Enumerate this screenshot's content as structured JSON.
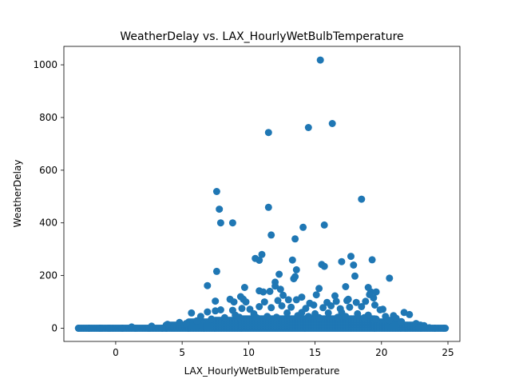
{
  "chart_data": {
    "type": "scatter",
    "title": "WeatherDelay vs. LAX_HourlyWetBulbTemperature",
    "xlabel": "LAX_HourlyWetBulbTemperature",
    "ylabel": "WeatherDelay",
    "xlim": [
      -3.9,
      25.9
    ],
    "ylim": [
      -50,
      1070
    ],
    "xticks": [
      0,
      5,
      10,
      15,
      20,
      25
    ],
    "yticks": [
      0,
      200,
      400,
      600,
      800,
      1000
    ],
    "grid": false,
    "legend": "none",
    "marker_color": "#1f77b4",
    "points": [
      {
        "x": 15.4,
        "y": 1018
      },
      {
        "x": 11.5,
        "y": 743
      },
      {
        "x": 14.5,
        "y": 762
      },
      {
        "x": 16.3,
        "y": 777
      },
      {
        "x": 7.6,
        "y": 519
      },
      {
        "x": 7.8,
        "y": 452
      },
      {
        "x": 11.5,
        "y": 459
      },
      {
        "x": 18.5,
        "y": 490
      },
      {
        "x": 7.9,
        "y": 400
      },
      {
        "x": 8.8,
        "y": 400
      },
      {
        "x": 14.1,
        "y": 383
      },
      {
        "x": 15.7,
        "y": 392
      },
      {
        "x": 11.7,
        "y": 354
      },
      {
        "x": 13.5,
        "y": 339
      },
      {
        "x": 10.5,
        "y": 265
      },
      {
        "x": 10.8,
        "y": 258
      },
      {
        "x": 11.0,
        "y": 280
      },
      {
        "x": 13.3,
        "y": 259
      },
      {
        "x": 15.5,
        "y": 242
      },
      {
        "x": 15.7,
        "y": 235
      },
      {
        "x": 17.0,
        "y": 253
      },
      {
        "x": 17.7,
        "y": 273
      },
      {
        "x": 17.9,
        "y": 240
      },
      {
        "x": 19.3,
        "y": 260
      },
      {
        "x": 7.6,
        "y": 216
      },
      {
        "x": 13.6,
        "y": 222
      },
      {
        "x": 12.3,
        "y": 205
      },
      {
        "x": 12.0,
        "y": 175
      },
      {
        "x": 12.0,
        "y": 160
      },
      {
        "x": 13.4,
        "y": 188
      },
      {
        "x": 13.5,
        "y": 196
      },
      {
        "x": 6.9,
        "y": 162
      },
      {
        "x": 9.7,
        "y": 155
      },
      {
        "x": 12.4,
        "y": 148
      },
      {
        "x": 15.3,
        "y": 151
      },
      {
        "x": 17.3,
        "y": 158
      },
      {
        "x": 19.0,
        "y": 155
      },
      {
        "x": 20.6,
        "y": 190
      },
      {
        "x": 10.8,
        "y": 142
      },
      {
        "x": 11.1,
        "y": 138
      },
      {
        "x": 11.6,
        "y": 140
      },
      {
        "x": 12.6,
        "y": 125
      },
      {
        "x": 14.0,
        "y": 118
      },
      {
        "x": 15.1,
        "y": 127
      },
      {
        "x": 16.5,
        "y": 123
      },
      {
        "x": 17.5,
        "y": 110
      },
      {
        "x": 18.0,
        "y": 198
      },
      {
        "x": 19.2,
        "y": 138
      },
      {
        "x": 19.6,
        "y": 138
      },
      {
        "x": 19.1,
        "y": 128
      },
      {
        "x": 19.4,
        "y": 115
      },
      {
        "x": 9.4,
        "y": 120
      },
      {
        "x": 9.6,
        "y": 110
      },
      {
        "x": 8.6,
        "y": 110
      },
      {
        "x": 7.5,
        "y": 103
      },
      {
        "x": 8.9,
        "y": 100
      },
      {
        "x": 9.8,
        "y": 100
      },
      {
        "x": 11.2,
        "y": 100
      },
      {
        "x": 12.2,
        "y": 105
      },
      {
        "x": 13.0,
        "y": 108
      },
      {
        "x": 13.6,
        "y": 108
      },
      {
        "x": 14.6,
        "y": 95
      },
      {
        "x": 15.9,
        "y": 98
      },
      {
        "x": 16.6,
        "y": 102
      },
      {
        "x": 17.4,
        "y": 105
      },
      {
        "x": 18.1,
        "y": 98
      },
      {
        "x": 18.8,
        "y": 102
      },
      {
        "x": 19.5,
        "y": 88
      },
      {
        "x": 20.1,
        "y": 72
      },
      {
        "x": 5.7,
        "y": 58
      },
      {
        "x": 6.9,
        "y": 62
      },
      {
        "x": 7.5,
        "y": 66
      },
      {
        "x": 7.9,
        "y": 70
      },
      {
        "x": 8.8,
        "y": 68
      },
      {
        "x": 9.5,
        "y": 75
      },
      {
        "x": 10.1,
        "y": 72
      },
      {
        "x": 10.8,
        "y": 82
      },
      {
        "x": 11.7,
        "y": 78
      },
      {
        "x": 12.5,
        "y": 85
      },
      {
        "x": 13.2,
        "y": 80
      },
      {
        "x": 14.3,
        "y": 75
      },
      {
        "x": 14.9,
        "y": 88
      },
      {
        "x": 15.6,
        "y": 78
      },
      {
        "x": 16.2,
        "y": 85
      },
      {
        "x": 16.9,
        "y": 74
      },
      {
        "x": 17.6,
        "y": 80
      },
      {
        "x": 18.5,
        "y": 82
      },
      {
        "x": 19.9,
        "y": 70
      },
      {
        "x": 20.9,
        "y": 48
      },
      {
        "x": 21.7,
        "y": 60
      },
      {
        "x": 22.1,
        "y": 52
      },
      {
        "x": 6.4,
        "y": 45
      },
      {
        "x": 9.0,
        "y": 50
      },
      {
        "x": 10.4,
        "y": 55
      },
      {
        "x": 12.9,
        "y": 58
      },
      {
        "x": 14.0,
        "y": 60
      },
      {
        "x": 15.0,
        "y": 55
      },
      {
        "x": 16.0,
        "y": 58
      },
      {
        "x": 17.0,
        "y": 60
      },
      {
        "x": 18.2,
        "y": 55
      },
      {
        "x": 19.0,
        "y": 50
      },
      {
        "x": 20.3,
        "y": 45
      },
      {
        "x": 21.1,
        "y": 38
      },
      {
        "x": 4.8,
        "y": 22
      },
      {
        "x": 5.3,
        "y": 18
      },
      {
        "x": 6.1,
        "y": 28
      },
      {
        "x": 7.2,
        "y": 35
      },
      {
        "x": 8.2,
        "y": 40
      },
      {
        "x": 9.3,
        "y": 42
      },
      {
        "x": 10.6,
        "y": 40
      },
      {
        "x": 11.4,
        "y": 45
      },
      {
        "x": 12.1,
        "y": 42
      },
      {
        "x": 13.7,
        "y": 48
      },
      {
        "x": 14.5,
        "y": 45
      },
      {
        "x": 15.3,
        "y": 40
      },
      {
        "x": 16.7,
        "y": 42
      },
      {
        "x": 17.3,
        "y": 45
      },
      {
        "x": 18.7,
        "y": 40
      },
      {
        "x": 19.6,
        "y": 35
      },
      {
        "x": 20.6,
        "y": 30
      },
      {
        "x": 21.5,
        "y": 25
      },
      {
        "x": 22.6,
        "y": 18
      },
      {
        "x": 23.2,
        "y": 10
      },
      {
        "x": 3.9,
        "y": 15
      },
      {
        "x": 2.7,
        "y": 8
      },
      {
        "x": 1.2,
        "y": 5
      },
      {
        "x": -2.8,
        "y": 0
      },
      {
        "x": -2.0,
        "y": 0
      },
      {
        "x": -1.2,
        "y": 0
      },
      {
        "x": -0.5,
        "y": 0
      },
      {
        "x": 0.5,
        "y": 0
      },
      {
        "x": 1.5,
        "y": 0
      },
      {
        "x": 2.5,
        "y": 0
      },
      {
        "x": 3.5,
        "y": 0
      },
      {
        "x": 24.0,
        "y": 0
      },
      {
        "x": 24.7,
        "y": 0
      },
      {
        "x": 22.8,
        "y": 3
      },
      {
        "x": 23.6,
        "y": 2
      }
    ],
    "dense_band": [
      {
        "x_from": -2.8,
        "x_to": 3.8,
        "y_from": 0,
        "y_to": 5
      },
      {
        "x_from": 3.8,
        "x_to": 5.5,
        "y_from": 0,
        "y_to": 15
      },
      {
        "x_from": 5.5,
        "x_to": 7.5,
        "y_from": 0,
        "y_to": 25
      },
      {
        "x_from": 7.5,
        "x_to": 9.5,
        "y_from": 0,
        "y_to": 32
      },
      {
        "x_from": 9.5,
        "x_to": 19.5,
        "y_from": 0,
        "y_to": 38
      },
      {
        "x_from": 19.5,
        "x_to": 21.5,
        "y_from": 0,
        "y_to": 25
      },
      {
        "x_from": 21.5,
        "x_to": 23.0,
        "y_from": 0,
        "y_to": 12
      },
      {
        "x_from": 23.0,
        "x_to": 24.8,
        "y_from": 0,
        "y_to": 4
      }
    ]
  }
}
